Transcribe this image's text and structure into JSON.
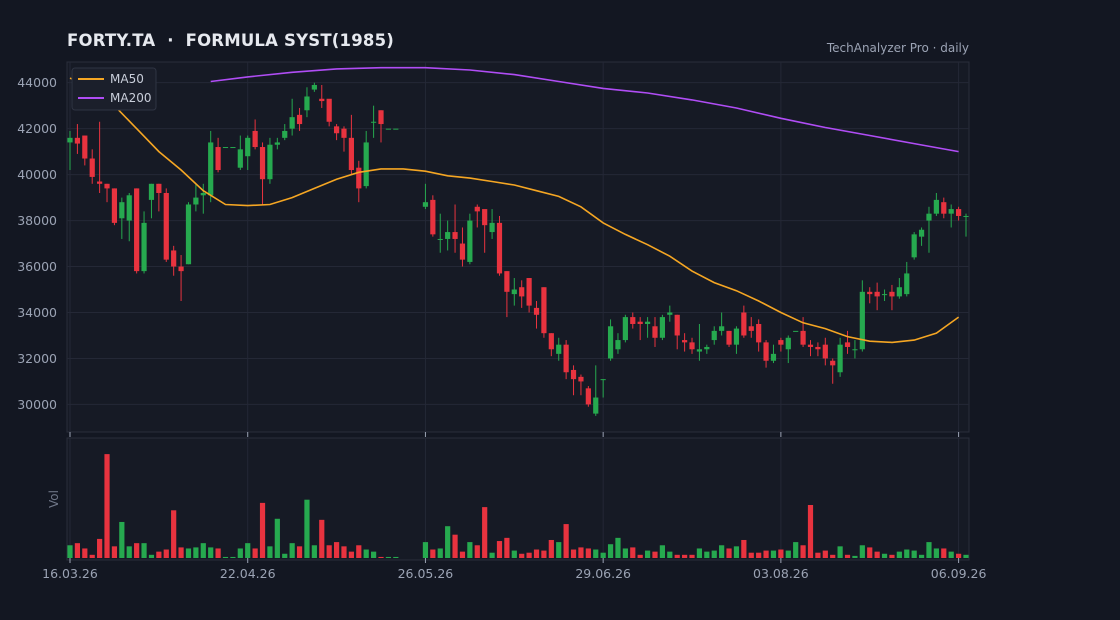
{
  "header": {
    "title": "FORTY.TA  ·  FORMULA SYST(1985)",
    "watermark": "TechAnalyzer Pro · daily"
  },
  "colors": {
    "background": "#131722",
    "panel": "#161a25",
    "grid": "#242836",
    "up": "#26a94f",
    "down": "#e8333f",
    "ma50": "#f5a623",
    "ma200": "#b04df5",
    "text": "#9ba3b4"
  },
  "chart_data": {
    "type": "candlestick",
    "interval": "daily",
    "y_ticks": [
      30000,
      32000,
      34000,
      36000,
      38000,
      40000,
      42000,
      44000
    ],
    "ylim": [
      28800,
      44900
    ],
    "x_ticks": [
      "16.03.26",
      "22.04.26",
      "26.05.26",
      "29.06.26",
      "03.08.26",
      "06.09.26"
    ],
    "x_tick_index": [
      0,
      24,
      48,
      72,
      96,
      120
    ],
    "volume_label": "Vol",
    "legend": [
      {
        "name": "MA50",
        "color": "#f5a623"
      },
      {
        "name": "MA200",
        "color": "#b04df5"
      }
    ],
    "candles": [
      [
        41400,
        41600,
        41900,
        40200
      ],
      [
        41600,
        41350,
        42200,
        40900
      ],
      [
        41700,
        40700,
        41700,
        40400
      ],
      [
        40700,
        39900,
        41100,
        39600
      ],
      [
        39700,
        39600,
        42300,
        39200
      ],
      [
        39600,
        39400,
        39600,
        38800
      ],
      [
        39400,
        37900,
        39400,
        37800
      ],
      [
        38100,
        38800,
        39000,
        37200
      ],
      [
        38000,
        39100,
        39200,
        37100
      ],
      [
        39400,
        35800,
        39400,
        35700
      ],
      [
        35800,
        37900,
        38400,
        35700
      ],
      [
        38900,
        39600,
        39600,
        38100
      ],
      [
        39600,
        39200,
        39600,
        38400
      ],
      [
        39200,
        36300,
        39400,
        36200
      ],
      [
        36700,
        36000,
        36900,
        35600
      ],
      [
        36000,
        35800,
        36500,
        34500
      ],
      [
        36100,
        38700,
        38800,
        36100
      ],
      [
        38700,
        39000,
        39600,
        38400
      ],
      [
        39100,
        39200,
        39600,
        38300
      ],
      [
        39100,
        41400,
        41900,
        38800
      ],
      [
        41200,
        40200,
        41600,
        40100
      ],
      [
        41200,
        41200,
        41200,
        41200
      ],
      [
        41200,
        41200,
        41200,
        41200
      ],
      [
        40300,
        41100,
        41700,
        40200
      ],
      [
        40800,
        41600,
        41700,
        40200
      ],
      [
        41900,
        41200,
        42400,
        41100
      ],
      [
        41200,
        39800,
        41400,
        38700
      ],
      [
        39800,
        41300,
        41600,
        39600
      ],
      [
        41300,
        41400,
        41600,
        41100
      ],
      [
        41600,
        41900,
        42200,
        41500
      ],
      [
        42000,
        42500,
        43300,
        41700
      ],
      [
        42600,
        42200,
        42900,
        41900
      ],
      [
        42800,
        43400,
        43800,
        42500
      ],
      [
        43700,
        43900,
        44000,
        43600
      ],
      [
        43300,
        43200,
        43900,
        42900
      ],
      [
        43300,
        42300,
        43100,
        42100
      ],
      [
        42100,
        41800,
        42200,
        41500
      ],
      [
        42000,
        41600,
        42100,
        41000
      ],
      [
        41600,
        40200,
        42600,
        40000
      ],
      [
        40300,
        39400,
        40600,
        38800
      ],
      [
        39500,
        41400,
        41900,
        39400
      ],
      [
        42300,
        42300,
        43000,
        41600
      ],
      [
        42800,
        42200,
        42800,
        41400
      ],
      [
        42000,
        42000,
        42000,
        42000
      ],
      [
        42000,
        42000,
        42000,
        42000
      ],
      [
        null,
        null,
        null,
        null
      ],
      [
        null,
        null,
        null,
        null
      ],
      [
        null,
        null,
        null,
        null
      ],
      [
        38600,
        38800,
        39600,
        38500
      ],
      [
        38900,
        37400,
        39100,
        37300
      ],
      [
        37200,
        37200,
        38300,
        36600
      ],
      [
        37200,
        37500,
        38000,
        36700
      ],
      [
        37500,
        37200,
        38700,
        36600
      ],
      [
        37000,
        36300,
        37700,
        36000
      ],
      [
        36200,
        38000,
        38300,
        36100
      ],
      [
        38600,
        38400,
        38700,
        37700
      ],
      [
        38500,
        37800,
        38400,
        36600
      ],
      [
        37500,
        37900,
        38500,
        37200
      ],
      [
        37900,
        35700,
        38200,
        35600
      ],
      [
        35800,
        34900,
        35800,
        33800
      ],
      [
        34800,
        35000,
        35500,
        34300
      ],
      [
        35100,
        34700,
        35400,
        34200
      ],
      [
        35500,
        34300,
        35500,
        34000
      ],
      [
        34200,
        33900,
        34500,
        33300
      ],
      [
        35100,
        33100,
        35100,
        32900
      ],
      [
        33100,
        32400,
        33100,
        32100
      ],
      [
        32200,
        32600,
        32900,
        31900
      ],
      [
        32600,
        31400,
        32800,
        31100
      ],
      [
        31500,
        31100,
        31700,
        30400
      ],
      [
        31200,
        31000,
        31300,
        30400
      ],
      [
        30700,
        30000,
        30800,
        29900
      ],
      [
        29600,
        30300,
        31700,
        29500
      ],
      [
        31100,
        31100,
        31100,
        30300
      ],
      [
        32000,
        33400,
        33700,
        31900
      ],
      [
        32400,
        32800,
        33100,
        32200
      ],
      [
        32800,
        33800,
        33900,
        32700
      ],
      [
        33800,
        33500,
        34000,
        33300
      ],
      [
        33600,
        33500,
        33800,
        32800
      ],
      [
        33500,
        33600,
        33800,
        32900
      ],
      [
        33400,
        32900,
        33800,
        32500
      ],
      [
        32900,
        33800,
        33900,
        32800
      ],
      [
        33900,
        34000,
        34300,
        33600
      ],
      [
        33900,
        33000,
        33900,
        32400
      ],
      [
        32800,
        32700,
        33100,
        32300
      ],
      [
        32700,
        32400,
        32900,
        32200
      ],
      [
        32300,
        32400,
        33500,
        31900
      ],
      [
        32400,
        32500,
        32600,
        32200
      ],
      [
        32800,
        33200,
        33400,
        32600
      ],
      [
        33200,
        33400,
        34000,
        33000
      ],
      [
        33200,
        32600,
        33200,
        32500
      ],
      [
        32600,
        33300,
        33400,
        32200
      ],
      [
        34000,
        33000,
        34300,
        32900
      ],
      [
        33400,
        33200,
        33800,
        32900
      ],
      [
        33500,
        32700,
        33700,
        32300
      ],
      [
        32700,
        31900,
        32800,
        31600
      ],
      [
        31900,
        32200,
        32600,
        31800
      ],
      [
        32800,
        32600,
        32900,
        32300
      ],
      [
        32400,
        32900,
        33000,
        31800
      ],
      [
        33200,
        33200,
        33200,
        33200
      ],
      [
        33200,
        32600,
        33800,
        32500
      ],
      [
        32600,
        32500,
        32800,
        32100
      ],
      [
        32500,
        32400,
        32700,
        32100
      ],
      [
        32600,
        32000,
        32900,
        31700
      ],
      [
        31900,
        31700,
        32000,
        30900
      ],
      [
        31400,
        32600,
        32900,
        31200
      ],
      [
        32700,
        32500,
        33200,
        32200
      ],
      [
        32400,
        32400,
        32800,
        32000
      ],
      [
        32400,
        34900,
        35400,
        32300
      ],
      [
        34900,
        34800,
        35100,
        34400
      ],
      [
        34900,
        34700,
        35300,
        34100
      ],
      [
        34800,
        34800,
        35000,
        34500
      ],
      [
        34900,
        34700,
        35200,
        34100
      ],
      [
        34700,
        35100,
        35500,
        34600
      ],
      [
        34800,
        35700,
        36200,
        34700
      ],
      [
        36400,
        37400,
        37500,
        36300
      ],
      [
        37300,
        37600,
        37700,
        36900
      ],
      [
        38000,
        38300,
        38600,
        36600
      ],
      [
        38300,
        38900,
        39200,
        38200
      ],
      [
        38800,
        38300,
        39000,
        38100
      ],
      [
        38300,
        38500,
        38700,
        37700
      ],
      [
        38500,
        38200,
        38600,
        38000
      ],
      [
        38200,
        38200,
        38300,
        37300
      ]
    ],
    "volume": [
      0.12,
      0.14,
      0.09,
      0.03,
      0.18,
      0.98,
      0.11,
      0.34,
      0.11,
      0.14,
      0.14,
      0.03,
      0.06,
      0.08,
      0.45,
      0.1,
      0.09,
      0.1,
      0.14,
      0.1,
      0.09,
      0.01,
      0.01,
      0.09,
      0.14,
      0.09,
      0.52,
      0.11,
      0.37,
      0.04,
      0.14,
      0.11,
      0.55,
      0.12,
      0.36,
      0.12,
      0.15,
      0.11,
      0.06,
      0.12,
      0.08,
      0.06,
      0.01,
      0.01,
      0.01,
      0,
      0,
      0,
      0.15,
      0.08,
      0.09,
      0.3,
      0.22,
      0.06,
      0.15,
      0.12,
      0.48,
      0.05,
      0.16,
      0.19,
      0.07,
      0.04,
      0.05,
      0.08,
      0.07,
      0.17,
      0.15,
      0.32,
      0.08,
      0.1,
      0.09,
      0.08,
      0.05,
      0.13,
      0.19,
      0.09,
      0.1,
      0.03,
      0.07,
      0.06,
      0.12,
      0.06,
      0.03,
      0.03,
      0.03,
      0.09,
      0.06,
      0.07,
      0.12,
      0.09,
      0.11,
      0.17,
      0.05,
      0.05,
      0.07,
      0.07,
      0.08,
      0.07,
      0.15,
      0.12,
      0.5,
      0.05,
      0.07,
      0.03,
      0.11,
      0.03,
      0.02,
      0.12,
      0.1,
      0.06,
      0.04,
      0.03,
      0.06,
      0.08,
      0.07,
      0.03,
      0.15,
      0.09,
      0.09,
      0.06,
      0.04,
      0.03
    ],
    "ma50": [
      [
        0,
        44200
      ],
      [
        3,
        43800
      ],
      [
        6,
        43000
      ],
      [
        9,
        42000
      ],
      [
        12,
        41000
      ],
      [
        15,
        40200
      ],
      [
        18,
        39300
      ],
      [
        21,
        38700
      ],
      [
        24,
        38650
      ],
      [
        27,
        38700
      ],
      [
        30,
        39000
      ],
      [
        33,
        39400
      ],
      [
        36,
        39800
      ],
      [
        39,
        40100
      ],
      [
        42,
        40250
      ],
      [
        45,
        40250
      ],
      [
        48,
        40150
      ],
      [
        51,
        39950
      ],
      [
        54,
        39850
      ],
      [
        57,
        39700
      ],
      [
        60,
        39550
      ],
      [
        63,
        39300
      ],
      [
        66,
        39050
      ],
      [
        69,
        38600
      ],
      [
        72,
        37900
      ],
      [
        75,
        37400
      ],
      [
        78,
        36950
      ],
      [
        81,
        36450
      ],
      [
        84,
        35800
      ],
      [
        87,
        35300
      ],
      [
        90,
        34950
      ],
      [
        93,
        34500
      ],
      [
        96,
        34000
      ],
      [
        99,
        33550
      ],
      [
        102,
        33300
      ],
      [
        105,
        32950
      ],
      [
        108,
        32750
      ],
      [
        111,
        32700
      ],
      [
        114,
        32800
      ],
      [
        117,
        33100
      ],
      [
        120,
        33800
      ]
    ],
    "ma200": [
      [
        19,
        44050
      ],
      [
        24,
        44250
      ],
      [
        30,
        44450
      ],
      [
        36,
        44600
      ],
      [
        42,
        44650
      ],
      [
        48,
        44650
      ],
      [
        54,
        44550
      ],
      [
        60,
        44350
      ],
      [
        66,
        44050
      ],
      [
        72,
        43750
      ],
      [
        78,
        43550
      ],
      [
        84,
        43250
      ],
      [
        90,
        42900
      ],
      [
        96,
        42450
      ],
      [
        102,
        42050
      ],
      [
        108,
        41700
      ],
      [
        114,
        41350
      ],
      [
        120,
        41000
      ]
    ]
  }
}
